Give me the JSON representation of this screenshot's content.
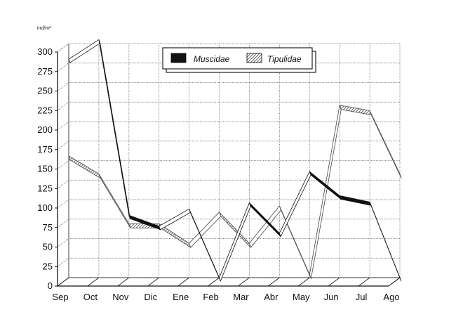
{
  "chart_data": {
    "type": "line",
    "title": "",
    "xlabel": "",
    "ylabel": "ind/m²",
    "categories": [
      "Sep",
      "Oct",
      "Nov",
      "Dic",
      "Ene",
      "Feb",
      "Mar",
      "Abr",
      "May",
      "Jun",
      "Jul",
      "Ago"
    ],
    "ylim": [
      0,
      300
    ],
    "yticks": [
      "0",
      "25",
      "50",
      "75",
      "100",
      "125",
      "150",
      "175",
      "200",
      "225",
      "250",
      "275",
      "300"
    ],
    "grid": true,
    "legend_position": "top-right",
    "series": [
      {
        "name": "Muscidae",
        "color": "#111111",
        "pattern": "solid",
        "values": [
          280,
          305,
          80,
          66,
          88,
          0,
          96,
          57,
          136,
          105,
          97,
          0
        ]
      },
      {
        "name": "Tipulidae",
        "color": "#9a9a9a",
        "pattern": "hatched",
        "values": [
          156,
          133,
          69,
          69,
          44,
          84,
          44,
          92,
          4,
          221,
          214,
          133
        ]
      }
    ]
  }
}
